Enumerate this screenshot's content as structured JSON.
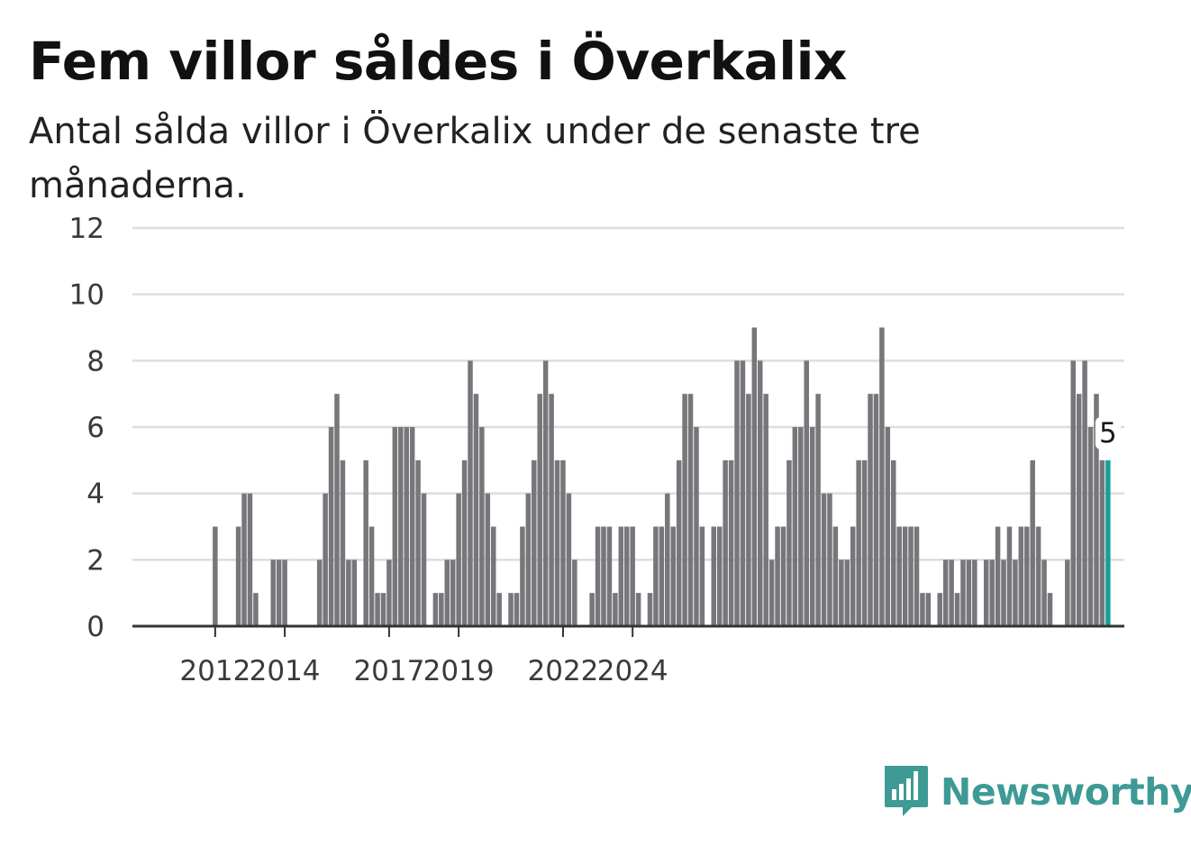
{
  "title": "Fem villor såldes i Överkalix",
  "subtitle": "Antal sålda villor i Överkalix under de senaste tre månaderna.",
  "brand": {
    "name": "Newsworthy",
    "color": "#3d9a95",
    "icon": "newsworthy-bar-chart-logo-icon"
  },
  "colors": {
    "bar": "#76767b",
    "highlight": "#1a9f96",
    "grid": "#dddddd",
    "axis": "#333333"
  },
  "chart_data": {
    "type": "bar",
    "ylim": [
      0,
      12
    ],
    "yticks": [
      0,
      2,
      4,
      6,
      8,
      10,
      12
    ],
    "xticks": [
      "2012",
      "2014",
      "2017",
      "2019",
      "2022",
      "2024"
    ],
    "xtick_index": [
      6,
      18,
      36,
      48,
      66,
      78
    ],
    "highlight_label": "5",
    "grid": true,
    "values": [
      0,
      0,
      0,
      0,
      0,
      0,
      3,
      0,
      0,
      0,
      3,
      4,
      4,
      1,
      0,
      0,
      2,
      2,
      2,
      0,
      0,
      0,
      0,
      0,
      2,
      4,
      6,
      7,
      5,
      2,
      2,
      0,
      5,
      3,
      1,
      1,
      2,
      6,
      6,
      6,
      6,
      5,
      4,
      0,
      1,
      1,
      2,
      2,
      4,
      5,
      8,
      7,
      6,
      4,
      3,
      1,
      0,
      1,
      1,
      3,
      4,
      5,
      7,
      8,
      7,
      5,
      5,
      4,
      2,
      0,
      0,
      1,
      3,
      3,
      3,
      1,
      3,
      3,
      3,
      1,
      0,
      1,
      3,
      3,
      4,
      3,
      5,
      7,
      7,
      6,
      3,
      0,
      3,
      3,
      5,
      5,
      8,
      8,
      7,
      9,
      8,
      7,
      2,
      3,
      3,
      5,
      6,
      6,
      8,
      6,
      7,
      4,
      4,
      3,
      2,
      2,
      3,
      5,
      5,
      7,
      7,
      9,
      6,
      5,
      3,
      3,
      3,
      3,
      1,
      1,
      0,
      1,
      2,
      2,
      1,
      2,
      2,
      2,
      0,
      2,
      2,
      3,
      2,
      3,
      2,
      3,
      3,
      5,
      3,
      2,
      1,
      0,
      0,
      2,
      8,
      7,
      8,
      6,
      7,
      5,
      5
    ]
  }
}
